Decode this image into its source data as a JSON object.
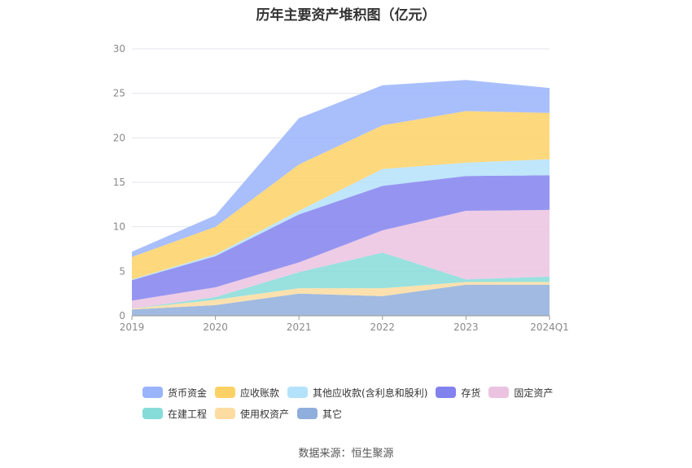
{
  "chart_data": {
    "type": "area",
    "stacked": true,
    "title": "历年主要资产堆积图（亿元）",
    "categories": [
      "2019",
      "2020",
      "2021",
      "2022",
      "2023",
      "2024Q1"
    ],
    "ylim": [
      0,
      30
    ],
    "yticks": [
      0,
      5,
      10,
      15,
      20,
      25,
      30
    ],
    "grid": true,
    "legend_position": "bottom",
    "series": [
      {
        "name": "其它",
        "color": "#8faedc",
        "values": [
          0.7,
          1.2,
          2.5,
          2.2,
          3.5,
          3.5
        ]
      },
      {
        "name": "使用权资产",
        "color": "#fcdca0",
        "values": [
          0.1,
          0.6,
          0.6,
          0.9,
          0.3,
          0.3
        ]
      },
      {
        "name": "在建工程",
        "color": "#86dcd9",
        "values": [
          0.0,
          0.3,
          1.8,
          4.0,
          0.3,
          0.6
        ]
      },
      {
        "name": "固定资产",
        "color": "#ebc3e0",
        "values": [
          0.9,
          1.1,
          1.1,
          2.5,
          7.7,
          7.5
        ]
      },
      {
        "name": "存货",
        "color": "#8282ee",
        "values": [
          2.3,
          3.5,
          5.4,
          5.0,
          3.9,
          3.9
        ]
      },
      {
        "name": "其他应收款(含利息和股利)",
        "color": "#b4e2fa",
        "values": [
          0.1,
          0.2,
          0.4,
          1.9,
          1.5,
          1.8
        ]
      },
      {
        "name": "应收账款",
        "color": "#fed166",
        "values": [
          2.5,
          3.1,
          5.2,
          4.9,
          5.8,
          5.2
        ]
      },
      {
        "name": "货币资金",
        "color": "#9ab4fb",
        "values": [
          0.6,
          1.3,
          5.2,
          4.5,
          3.5,
          2.8
        ]
      }
    ]
  },
  "legend_order": [
    "货币资金",
    "应收账款",
    "其他应收款(含利息和股利)",
    "存货",
    "固定资产",
    "在建工程",
    "使用权资产",
    "其它"
  ],
  "source": "数据来源：恒生聚源"
}
